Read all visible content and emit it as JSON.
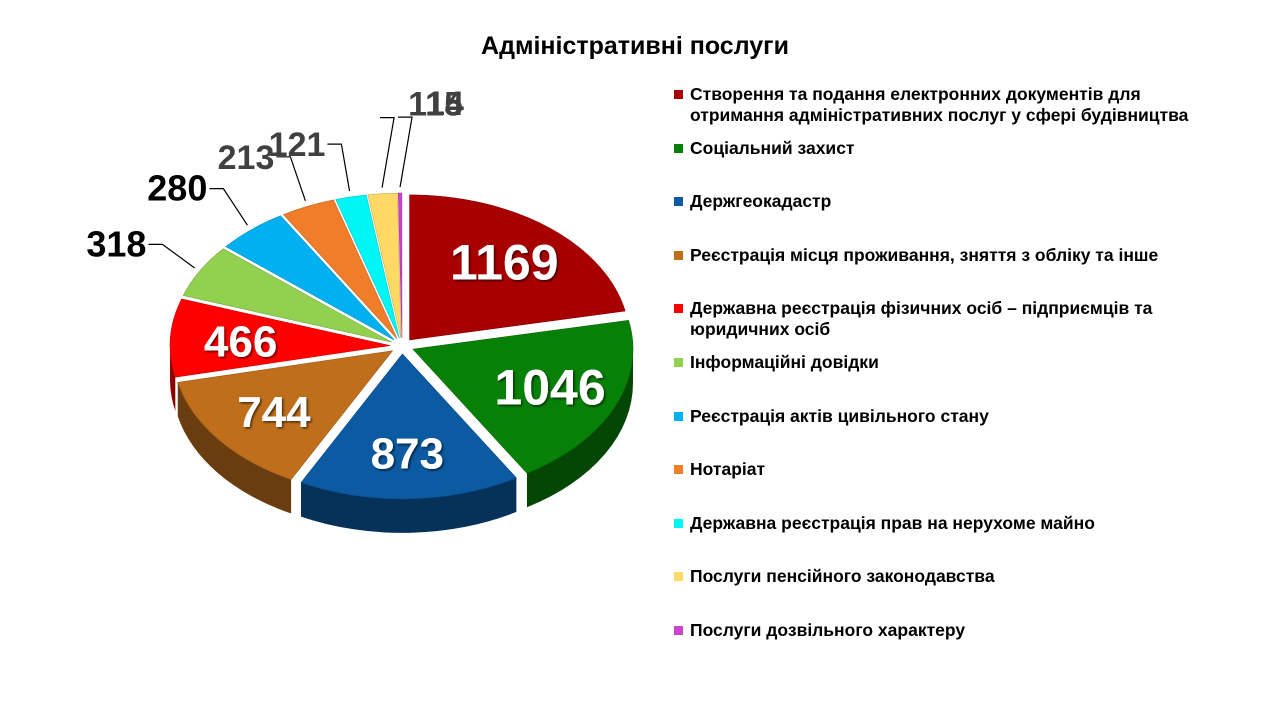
{
  "chart_data": {
    "type": "pie",
    "title": "Адміністративні послуги",
    "legend_position": "right",
    "series": [
      {
        "label": "Створення та подання електронних документів для отримання адміністративних послуг у сфері будівництва",
        "value": 1169,
        "color": "#a80000"
      },
      {
        "label": "Соціальний захист",
        "value": 1046,
        "color": "#078007"
      },
      {
        "label": "Держгеокадастр",
        "value": 873,
        "color": "#0b5aa2"
      },
      {
        "label": "Реєстрація місця проживання, зняття з обліку та інше",
        "value": 744,
        "color": "#bf6f1c"
      },
      {
        "label": "Державна реєстрація фізичних осіб – підприємців та юридичних осіб",
        "value": 466,
        "color": "#ff0000"
      },
      {
        "label": "Інформаційні довідки",
        "value": 318,
        "color": "#92d050"
      },
      {
        "label": "Реєстрація актів цивільного стану",
        "value": 280,
        "color": "#00b0f0"
      },
      {
        "label": "Нотаріат",
        "value": 213,
        "color": "#f07d2a"
      },
      {
        "label": "Державна реєстрація прав на нерухоме майно",
        "value": 121,
        "color": "#00f5f5"
      },
      {
        "label": "Послуги пенсійного законодавства",
        "value": 115,
        "color": "#ffd966"
      },
      {
        "label": "Послуги дозвільного характеру",
        "value": 14,
        "color": "#cc44cc"
      }
    ]
  }
}
